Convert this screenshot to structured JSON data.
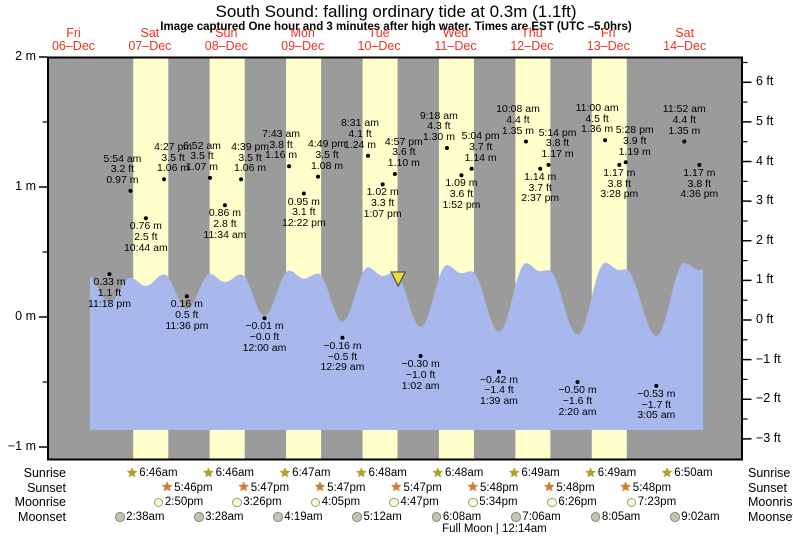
{
  "title": "South Sound: falling  ordinary tide at 0.3m (1.1ft)",
  "subtitle": "Image captured One hour and 3 minutes after high water. Times are EST (UTC –5.0hrs)",
  "footer_note": "Full Moon | 12:14am",
  "colors": {
    "night_bg": "#9b9b9b",
    "daylight_band": "#ffffcc",
    "water": "#a9b8ec",
    "date_red": "#ee3224",
    "frame": "#000000",
    "dot": "#000000",
    "sunrise_star": "#b5a50b",
    "sunset_star": "#e07818",
    "moonrise_fill": "#ffffcc",
    "moonrise_border": "#999988",
    "moonset_fill": "#c3c3b2",
    "moonset_border": "#888877",
    "marker_fill": "#ecdc3a",
    "marker_stroke": "#555555"
  },
  "days": [
    {
      "weekday": "Fri",
      "date": "06–Dec"
    },
    {
      "weekday": "Sat",
      "date": "07–Dec"
    },
    {
      "weekday": "Sun",
      "date": "08–Dec"
    },
    {
      "weekday": "Mon",
      "date": "09–Dec"
    },
    {
      "weekday": "Tue",
      "date": "10–Dec"
    },
    {
      "weekday": "Wed",
      "date": "11–Dec"
    },
    {
      "weekday": "Thu",
      "date": "12–Dec"
    },
    {
      "weekday": "Fri",
      "date": "13–Dec"
    },
    {
      "weekday": "Sat",
      "date": "14–Dec"
    }
  ],
  "axis": {
    "left_ticks": [
      {
        "m": 2,
        "label": "2 m"
      },
      {
        "m": 1,
        "label": "1 m"
      },
      {
        "m": 0,
        "label": "0 m"
      },
      {
        "m": -1,
        "label": "−1 m"
      }
    ],
    "right_ticks": [
      {
        "ft": 6,
        "label": "6 ft"
      },
      {
        "ft": 5,
        "label": "5 ft"
      },
      {
        "ft": 4,
        "label": "4 ft"
      },
      {
        "ft": 3,
        "label": "3 ft"
      },
      {
        "ft": 2,
        "label": "2 ft"
      },
      {
        "ft": 1,
        "label": "1 ft"
      },
      {
        "ft": 0,
        "label": "0 ft"
      },
      {
        "ft": -1,
        "label": "−1 ft"
      },
      {
        "ft": -2,
        "label": "−2 ft"
      },
      {
        "ft": -3,
        "label": "−3 ft"
      }
    ]
  },
  "chart_data": {
    "type": "area",
    "title": "South Sound: falling  ordinary tide at 0.3m (1.1ft)",
    "x_axis": "days 06-Dec through 14-Dec",
    "y_axis_left_range_m": [
      -1.1,
      2.0
    ],
    "y_axis_right_range_ft": [
      -3.6,
      6.6
    ],
    "captured_marker": {
      "day": 4,
      "time": "6:00 pm"
    },
    "tide_events": [
      {
        "day": 0,
        "time": "11:18 pm",
        "height_m": 0.33,
        "label_m": "0.33 m",
        "label_ft": "1.1 ft",
        "kind": "low"
      },
      {
        "day": 1,
        "time": "5:54 am",
        "height_m": 0.97,
        "label_m": "0.97 m",
        "label_ft": "3.2 ft",
        "kind": "high"
      },
      {
        "day": 1,
        "time": "10:44 am",
        "height_m": 0.76,
        "label_m": "0.76 m",
        "label_ft": "2.5 ft",
        "kind": "low"
      },
      {
        "day": 1,
        "time": "4:27 pm",
        "height_m": 1.06,
        "label_m": "1.06 m",
        "label_ft": "3.5 ft",
        "kind": "high"
      },
      {
        "day": 1,
        "time": "11:36 pm",
        "height_m": 0.16,
        "label_m": "0.16 m",
        "label_ft": "0.5 ft",
        "kind": "low"
      },
      {
        "day": 2,
        "time": "6:52 am",
        "height_m": 1.07,
        "label_m": "1.07 m",
        "label_ft": "3.5 ft",
        "kind": "high"
      },
      {
        "day": 2,
        "time": "11:34 am",
        "height_m": 0.86,
        "label_m": "0.86 m",
        "label_ft": "2.8 ft",
        "kind": "low"
      },
      {
        "day": 2,
        "time": "4:39 pm",
        "height_m": 1.06,
        "label_m": "1.06 m",
        "label_ft": "3.5 ft",
        "kind": "high"
      },
      {
        "day": 3,
        "time": "12:00 am",
        "height_m": -0.01,
        "label_m": "−0.01 m",
        "label_ft": "−0.0 ft",
        "kind": "low"
      },
      {
        "day": 3,
        "time": "7:43 am",
        "height_m": 1.16,
        "label_m": "1.16 m",
        "label_ft": "3.8 ft",
        "kind": "high"
      },
      {
        "day": 3,
        "time": "12:22 pm",
        "height_m": 0.95,
        "label_m": "0.95 m",
        "label_ft": "3.1 ft",
        "kind": "low"
      },
      {
        "day": 3,
        "time": "4:49 pm",
        "height_m": 1.08,
        "label_m": "1.08 m",
        "label_ft": "3.5 ft",
        "kind": "high"
      },
      {
        "day": 4,
        "time": "12:29 am",
        "height_m": -0.16,
        "label_m": "−0.16 m",
        "label_ft": "−0.5 ft",
        "kind": "low"
      },
      {
        "day": 4,
        "time": "8:31 am",
        "height_m": 1.24,
        "label_m": "1.24 m",
        "label_ft": "4.1 ft",
        "kind": "high"
      },
      {
        "day": 4,
        "time": "1:07 pm",
        "height_m": 1.02,
        "label_m": "1.02 m",
        "label_ft": "3.3 ft",
        "kind": "low"
      },
      {
        "day": 4,
        "time": "4:57 pm",
        "height_m": 1.1,
        "label_m": "1.10 m",
        "label_ft": "3.6 ft",
        "kind": "high"
      },
      {
        "day": 5,
        "time": "1:02 am",
        "height_m": -0.3,
        "label_m": "−0.30 m",
        "label_ft": "−1.0 ft",
        "kind": "low"
      },
      {
        "day": 5,
        "time": "9:18 am",
        "height_m": 1.3,
        "label_m": "1.30 m",
        "label_ft": "4.3 ft",
        "kind": "high"
      },
      {
        "day": 5,
        "time": "1:52 pm",
        "height_m": 1.09,
        "label_m": "1.09 m",
        "label_ft": "3.6 ft",
        "kind": "low"
      },
      {
        "day": 5,
        "time": "5:04 pm",
        "height_m": 1.14,
        "label_m": "1.14 m",
        "label_ft": "3.7 ft",
        "kind": "high"
      },
      {
        "day": 6,
        "time": "1:39 am",
        "height_m": -0.42,
        "label_m": "−0.42 m",
        "label_ft": "−1.4 ft",
        "kind": "low"
      },
      {
        "day": 6,
        "time": "10:08 am",
        "height_m": 1.35,
        "label_m": "1.35 m",
        "label_ft": "4.4 ft",
        "kind": "high"
      },
      {
        "day": 6,
        "time": "2:37 pm",
        "height_m": 1.14,
        "label_m": "1.14 m",
        "label_ft": "3.7 ft",
        "kind": "low"
      },
      {
        "day": 6,
        "time": "5:14 pm",
        "height_m": 1.17,
        "label_m": "1.17 m",
        "label_ft": "3.8 ft",
        "kind": "high"
      },
      {
        "day": 7,
        "time": "2:20 am",
        "height_m": -0.5,
        "label_m": "−0.50 m",
        "label_ft": "−1.6 ft",
        "kind": "low"
      },
      {
        "day": 7,
        "time": "11:00 am",
        "height_m": 1.36,
        "label_m": "1.36 m",
        "label_ft": "4.5 ft",
        "kind": "high"
      },
      {
        "day": 7,
        "time": "3:28 pm",
        "height_m": 1.17,
        "label_m": "1.17 m",
        "label_ft": "3.8 ft",
        "kind": "low"
      },
      {
        "day": 7,
        "time": "5:28 pm",
        "height_m": 1.19,
        "label_m": "1.19 m",
        "label_ft": "3.9 ft",
        "kind": "high"
      },
      {
        "day": 8,
        "time": "3:05 am",
        "height_m": -0.53,
        "label_m": "−0.53 m",
        "label_ft": "−1.7 ft",
        "kind": "low"
      },
      {
        "day": 8,
        "time": "11:52 am",
        "height_m": 1.35,
        "label_m": "1.35 m",
        "label_ft": "4.4 ft",
        "kind": "high"
      },
      {
        "day": 8,
        "time": "4:36 pm",
        "height_m": 1.17,
        "label_m": "1.17 m",
        "label_ft": "3.8 ft",
        "kind": "low"
      }
    ],
    "astro": {
      "rows": [
        {
          "label": "Sunrise",
          "icon": "sunrise-star-icon",
          "entries": [
            {
              "day": 1,
              "time": "6:46am"
            },
            {
              "day": 2,
              "time": "6:46am"
            },
            {
              "day": 3,
              "time": "6:47am"
            },
            {
              "day": 4,
              "time": "6:48am"
            },
            {
              "day": 5,
              "time": "6:48am"
            },
            {
              "day": 6,
              "time": "6:49am"
            },
            {
              "day": 7,
              "time": "6:49am"
            },
            {
              "day": 8,
              "time": "6:50am"
            }
          ]
        },
        {
          "label": "Sunset",
          "icon": "sunset-star-icon",
          "entries": [
            {
              "day": 1,
              "time": "5:46pm"
            },
            {
              "day": 2,
              "time": "5:47pm"
            },
            {
              "day": 3,
              "time": "5:47pm"
            },
            {
              "day": 4,
              "time": "5:47pm"
            },
            {
              "day": 5,
              "time": "5:48pm"
            },
            {
              "day": 6,
              "time": "5:48pm"
            },
            {
              "day": 7,
              "time": "5:48pm"
            }
          ]
        },
        {
          "label": "Moonrise",
          "icon": "moonrise-circle-icon",
          "entries": [
            {
              "day": 1,
              "time": "2:50pm"
            },
            {
              "day": 2,
              "time": "3:26pm"
            },
            {
              "day": 3,
              "time": "4:05pm"
            },
            {
              "day": 4,
              "time": "4:47pm"
            },
            {
              "day": 5,
              "time": "5:34pm"
            },
            {
              "day": 6,
              "time": "6:26pm"
            },
            {
              "day": 7,
              "time": "7:23pm"
            }
          ]
        },
        {
          "label": "Moonset",
          "icon": "moonset-circle-icon",
          "entries": [
            {
              "day": 1,
              "time": "2:38am"
            },
            {
              "day": 2,
              "time": "3:28am"
            },
            {
              "day": 3,
              "time": "4:19am"
            },
            {
              "day": 4,
              "time": "5:12am"
            },
            {
              "day": 5,
              "time": "6:08am"
            },
            {
              "day": 6,
              "time": "7:06am"
            },
            {
              "day": 7,
              "time": "8:05am"
            },
            {
              "day": 8,
              "time": "9:02am"
            }
          ]
        }
      ],
      "full_moon": {
        "label": "Full Moon | 12:14am",
        "day": 6,
        "time": "12:14 am"
      }
    }
  }
}
